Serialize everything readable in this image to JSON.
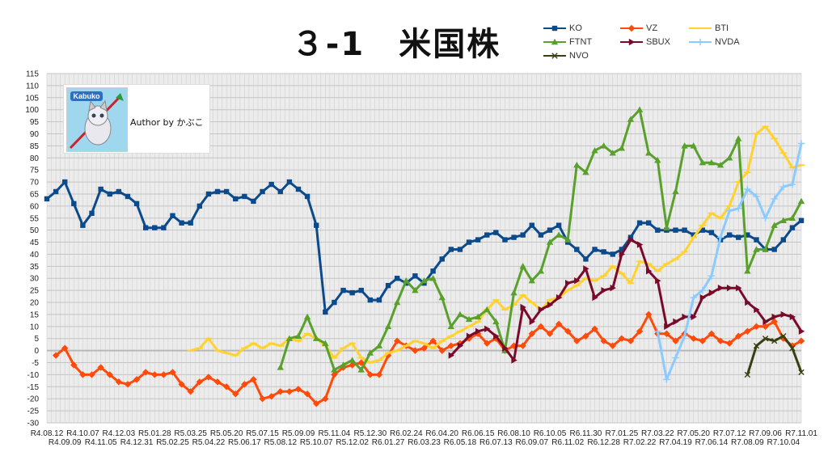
{
  "chart_data": {
    "type": "line",
    "title": "３-1　米国株",
    "author_label": "Author by かぶこ",
    "logo_text": "Kabuko",
    "ylim": [
      -30,
      115
    ],
    "ytick_step": 5,
    "grid": true,
    "legend_position": "top-right",
    "x_labels": [
      "R4.08.12",
      "R4.09.09",
      "R4.10.07",
      "R4.11.05",
      "R4.12.03",
      "R4.12.31",
      "R5.01.28",
      "R5.02.25",
      "R5.03.25",
      "R5.04.22",
      "R5.05.20",
      "R5.06.17",
      "R5.07.15",
      "R5.08.12",
      "R5.09.09",
      "R5.10.07",
      "R5.11.04",
      "R5.12.02",
      "R5.12.30",
      "R6.01.27",
      "R6.02.24",
      "R6.03.23",
      "R6.04.20",
      "R6.05.18",
      "R6.06.15",
      "R6.07.13",
      "R6.08.10",
      "R6.09.07",
      "R6.10.05",
      "R6.11.02",
      "R6.11.30",
      "R6.12.28",
      "R7.01.25",
      "R7.02.22",
      "R7.03.22",
      "R7.04.19",
      "R7.05.20",
      "R7.06.14",
      "R7.07.12",
      "R7.08.09",
      "R7.09.06",
      "R7.10.04",
      "R7.11.01"
    ],
    "series": [
      {
        "name": "KO",
        "color": "#0B4A8B",
        "marker": "square",
        "values": [
          63,
          66,
          70,
          61,
          52,
          57,
          67,
          65,
          66,
          64,
          61,
          51,
          51,
          51,
          56,
          53,
          53,
          60,
          65,
          66,
          66,
          63,
          64,
          62,
          66,
          69,
          66,
          70,
          67,
          64,
          52,
          16,
          20,
          25,
          24,
          25,
          21,
          21,
          27,
          30,
          28,
          31,
          28,
          33,
          38,
          42,
          42,
          45,
          46,
          48,
          49,
          46,
          47,
          48,
          52,
          48,
          50,
          52,
          45,
          42,
          38,
          42,
          41,
          40,
          42,
          47,
          53,
          53,
          50,
          50,
          50,
          50,
          48,
          50,
          49,
          46,
          48,
          47,
          48,
          46,
          42,
          42,
          46,
          51,
          54
        ]
      },
      {
        "name": "VZ",
        "color": "#FF4A0A",
        "marker": "diamond",
        "values": [
          null,
          -2,
          1,
          -6,
          -10,
          -10,
          -7,
          -10,
          -13,
          -14,
          -12,
          -9,
          -10,
          -10,
          -9,
          -14,
          -17,
          -13,
          -11,
          -13,
          -15,
          -18,
          -14,
          -12,
          -20,
          -19,
          -17,
          -17,
          -16,
          -18,
          -22,
          -20,
          -10,
          -7,
          -6,
          -5,
          -10,
          -10,
          -2,
          4,
          2,
          0,
          1,
          4,
          0,
          2,
          3,
          5,
          7,
          3,
          5,
          0,
          2,
          2,
          7,
          10,
          7,
          11,
          8,
          4,
          6,
          9,
          4,
          2,
          5,
          4,
          8,
          15,
          7,
          7,
          4,
          7,
          5,
          4,
          7,
          4,
          3,
          6,
          8,
          10,
          10,
          12,
          5,
          2,
          4
        ]
      },
      {
        "name": "BTI",
        "color": "#FFD230",
        "marker": "dash",
        "values": [
          null,
          null,
          null,
          null,
          null,
          null,
          null,
          null,
          null,
          null,
          null,
          null,
          null,
          null,
          null,
          null,
          0,
          1,
          5,
          0,
          -1,
          -2,
          1,
          3,
          1,
          3,
          2,
          5,
          4,
          7,
          5,
          2,
          -3,
          1,
          3,
          -3,
          -5,
          -4,
          -1,
          0,
          2,
          4,
          3,
          1,
          4,
          6,
          8,
          10,
          12,
          17,
          21,
          17,
          19,
          23,
          20,
          17,
          21,
          22,
          25,
          27,
          30,
          29,
          31,
          35,
          32,
          28,
          37,
          36,
          33,
          36,
          38,
          41,
          47,
          52,
          57,
          55,
          60,
          70,
          74,
          90,
          93,
          88,
          82,
          76,
          77
        ]
      },
      {
        "name": "FTNT",
        "color": "#5AA02C",
        "marker": "triangle",
        "values": [
          null,
          null,
          null,
          null,
          null,
          null,
          null,
          null,
          null,
          null,
          null,
          null,
          null,
          null,
          null,
          null,
          null,
          null,
          null,
          null,
          null,
          null,
          null,
          null,
          null,
          null,
          -7,
          5,
          6,
          14,
          5,
          3,
          -8,
          -6,
          -4,
          -8,
          -1,
          2,
          10,
          20,
          29,
          25,
          29,
          30,
          22,
          10,
          15,
          13,
          14,
          17,
          12,
          0,
          24,
          35,
          29,
          33,
          45,
          48,
          46,
          77,
          74,
          83,
          85,
          82,
          84,
          96,
          100,
          82,
          79,
          51,
          66,
          85,
          85,
          78,
          78,
          77,
          80,
          88,
          33,
          42,
          42,
          52,
          54,
          55,
          62
        ]
      },
      {
        "name": "SBUX",
        "color": "#7A0A2A",
        "marker": "right-triangle",
        "values": [
          null,
          null,
          null,
          null,
          null,
          null,
          null,
          null,
          null,
          null,
          null,
          null,
          null,
          null,
          null,
          null,
          null,
          null,
          null,
          null,
          null,
          null,
          null,
          null,
          null,
          null,
          null,
          null,
          null,
          null,
          null,
          null,
          null,
          null,
          null,
          null,
          null,
          null,
          null,
          null,
          null,
          null,
          null,
          null,
          null,
          -2,
          2,
          6,
          8,
          9,
          6,
          1,
          -4,
          18,
          12,
          17,
          19,
          22,
          28,
          29,
          34,
          22,
          25,
          26,
          40,
          46,
          44,
          33,
          29,
          10,
          12,
          14,
          14,
          22,
          24,
          26,
          26,
          26,
          20,
          17,
          12,
          14,
          15,
          14,
          8
        ]
      },
      {
        "name": "NVDA",
        "color": "#8CCBFF",
        "marker": "plus",
        "values": [
          null,
          null,
          null,
          null,
          null,
          null,
          null,
          null,
          null,
          null,
          null,
          null,
          null,
          null,
          null,
          null,
          null,
          null,
          null,
          null,
          null,
          null,
          null,
          null,
          null,
          null,
          null,
          null,
          null,
          null,
          null,
          null,
          null,
          null,
          null,
          null,
          null,
          null,
          null,
          null,
          null,
          null,
          null,
          null,
          null,
          null,
          null,
          null,
          null,
          null,
          null,
          null,
          null,
          null,
          null,
          null,
          null,
          null,
          null,
          null,
          null,
          null,
          null,
          null,
          null,
          null,
          null,
          null,
          8,
          -12,
          -3,
          6,
          22,
          25,
          31,
          47,
          58,
          59,
          67,
          64,
          55,
          63,
          68,
          69,
          86
        ]
      },
      {
        "name": "NVO",
        "color": "#3A3F12",
        "marker": "x",
        "values": [
          null,
          null,
          null,
          null,
          null,
          null,
          null,
          null,
          null,
          null,
          null,
          null,
          null,
          null,
          null,
          null,
          null,
          null,
          null,
          null,
          null,
          null,
          null,
          null,
          null,
          null,
          null,
          null,
          null,
          null,
          null,
          null,
          null,
          null,
          null,
          null,
          null,
          null,
          null,
          null,
          null,
          null,
          null,
          null,
          null,
          null,
          null,
          null,
          null,
          null,
          null,
          null,
          null,
          null,
          null,
          null,
          null,
          null,
          null,
          null,
          null,
          null,
          null,
          null,
          null,
          null,
          null,
          null,
          null,
          null,
          null,
          null,
          null,
          null,
          null,
          null,
          null,
          null,
          -10,
          2,
          5,
          4,
          6,
          1,
          -9
        ]
      }
    ]
  }
}
